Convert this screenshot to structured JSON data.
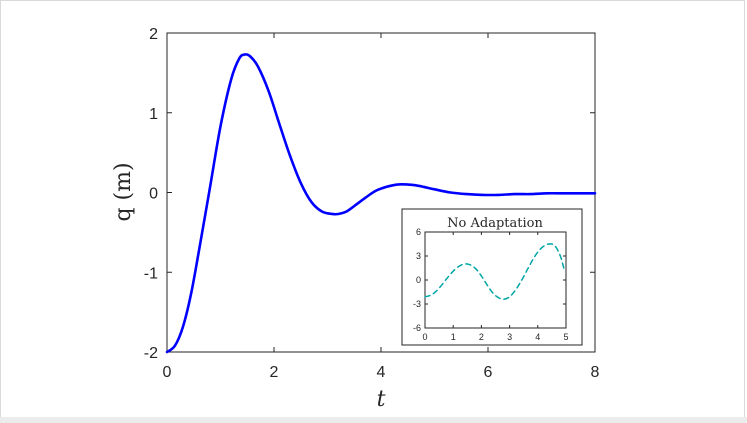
{
  "chart_data": [
    {
      "type": "line",
      "title": "",
      "xlabel": "t",
      "ylabel": "q (m)",
      "xlim": [
        0,
        8
      ],
      "ylim": [
        -2,
        2
      ],
      "xticks": [
        0,
        2,
        4,
        6,
        8
      ],
      "yticks": [
        -2,
        -1,
        0,
        1,
        2
      ],
      "grid": false,
      "series": [
        {
          "color": "#0000ff",
          "style": "solid",
          "x": [
            0,
            0.15,
            0.3,
            0.45,
            0.6,
            0.8,
            1.0,
            1.2,
            1.35,
            1.45,
            1.55,
            1.7,
            1.9,
            2.1,
            2.3,
            2.5,
            2.7,
            2.9,
            3.1,
            3.2,
            3.35,
            3.5,
            3.7,
            3.9,
            4.1,
            4.3,
            4.5,
            4.65,
            4.8,
            5.0,
            5.3,
            5.6,
            5.9,
            6.2,
            6.5,
            6.8,
            7.1,
            7.4,
            7.7,
            8.0
          ],
          "y": [
            -2.0,
            -1.92,
            -1.68,
            -1.27,
            -0.72,
            0.05,
            0.83,
            1.42,
            1.68,
            1.73,
            1.71,
            1.58,
            1.27,
            0.86,
            0.46,
            0.12,
            -0.12,
            -0.24,
            -0.27,
            -0.27,
            -0.24,
            -0.17,
            -0.07,
            0.02,
            0.07,
            0.1,
            0.1,
            0.09,
            0.07,
            0.04,
            0.0,
            -0.02,
            -0.03,
            -0.03,
            -0.02,
            -0.02,
            -0.01,
            -0.01,
            -0.01,
            -0.01
          ]
        }
      ]
    },
    {
      "type": "line",
      "title": "No Adaptation",
      "xlabel": "",
      "ylabel": "",
      "xlim": [
        0,
        5
      ],
      "ylim": [
        -6,
        6
      ],
      "xticks": [
        0,
        1,
        2,
        3,
        4,
        5
      ],
      "yticks": [
        -6,
        -3,
        0,
        3,
        6
      ],
      "grid": false,
      "series": [
        {
          "color": "#00a6a6",
          "style": "dashed",
          "x": [
            0,
            0.2,
            0.4,
            0.6,
            0.8,
            1.0,
            1.2,
            1.4,
            1.6,
            1.8,
            2.0,
            2.2,
            2.4,
            2.6,
            2.8,
            3.0,
            3.2,
            3.4,
            3.6,
            3.8,
            4.0,
            4.2,
            4.4,
            4.6,
            4.8,
            4.95
          ],
          "y": [
            -2.1,
            -1.9,
            -1.4,
            -0.6,
            0.3,
            1.1,
            1.7,
            2.0,
            1.9,
            1.4,
            0.5,
            -0.6,
            -1.6,
            -2.2,
            -2.4,
            -2.1,
            -1.3,
            -0.2,
            1.1,
            2.4,
            3.5,
            4.2,
            4.5,
            4.3,
            3.0,
            1.1
          ]
        }
      ]
    }
  ]
}
